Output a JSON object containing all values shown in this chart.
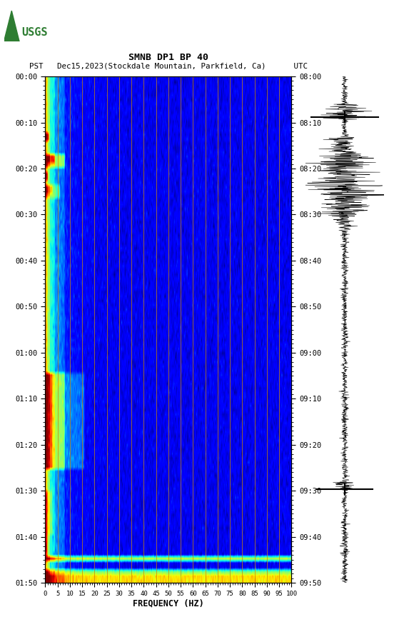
{
  "title_line1": "SMNB DP1 BP 40",
  "title_line2": "PST   Dec15,2023(Stockdale Mountain, Parkfield, Ca)      UTC",
  "xlabel": "FREQUENCY (HZ)",
  "freq_ticks": [
    0,
    5,
    10,
    15,
    20,
    25,
    30,
    35,
    40,
    45,
    50,
    55,
    60,
    65,
    70,
    75,
    80,
    85,
    90,
    95,
    100
  ],
  "time_ticks_left": [
    "00:00",
    "00:10",
    "00:20",
    "00:30",
    "00:40",
    "00:50",
    "01:00",
    "01:10",
    "01:20",
    "01:30",
    "01:40",
    "01:50"
  ],
  "time_ticks_right": [
    "08:00",
    "08:10",
    "08:20",
    "08:30",
    "08:40",
    "08:50",
    "09:00",
    "09:10",
    "09:20",
    "09:30",
    "09:40",
    "09:50"
  ],
  "vertical_line_color": "#cc8800",
  "vertical_line_freqs": [
    5,
    10,
    15,
    20,
    25,
    30,
    35,
    40,
    45,
    50,
    55,
    60,
    65,
    70,
    75,
    80,
    85,
    90,
    95
  ]
}
